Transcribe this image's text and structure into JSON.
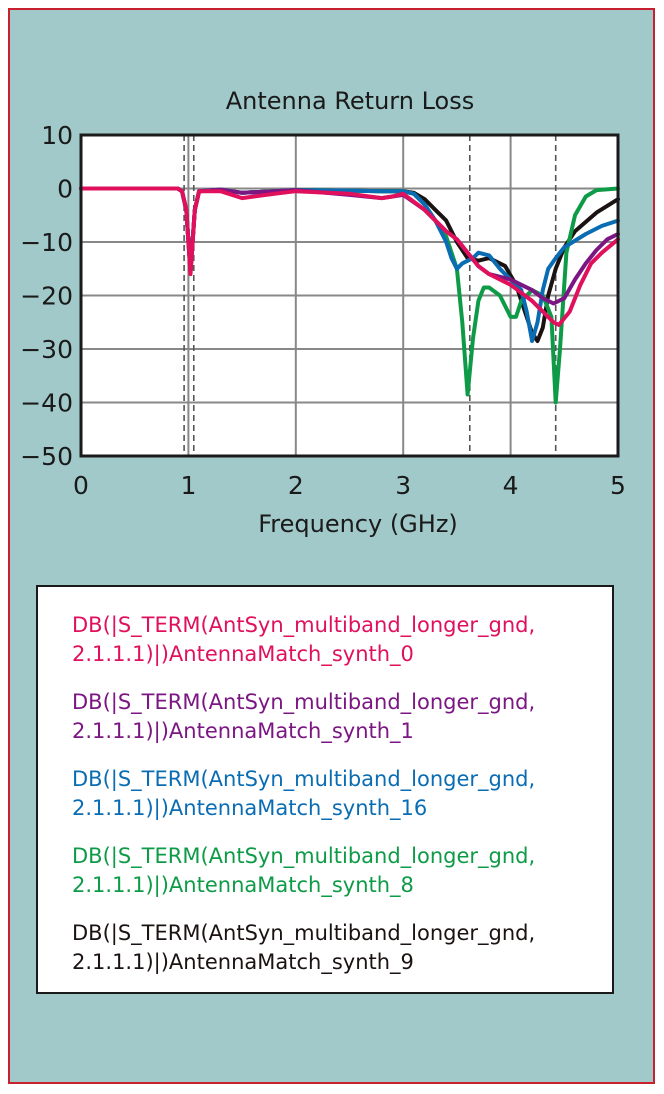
{
  "colors": {
    "background": "#a1c9c9",
    "frame_border": "#c8202f",
    "plot_bg": "#ffffff",
    "grid": "#888888",
    "axis": "#1a1a1a"
  },
  "chart_data": {
    "type": "line",
    "title": "Antenna Return Loss",
    "xlabel": "Frequency (GHz)",
    "ylabel": "",
    "xlim": [
      0,
      5
    ],
    "ylim": [
      -50,
      10
    ],
    "xticks": [
      "0",
      "1",
      "2",
      "3",
      "4",
      "5"
    ],
    "yticks": [
      "10",
      "0",
      "−10",
      "−20",
      "−30",
      "−40",
      "−50"
    ],
    "grid": true,
    "marker_lines": [
      0.96,
      1.05,
      3.62,
      4.42
    ],
    "legend_position": "below",
    "series": [
      {
        "name": "DB(|S_TERM(AntSyn_multiband_longer_gnd, 2.1.1.1)|)AntennaMatch_synth_9",
        "color": "#1b1212",
        "points": [
          [
            0,
            0
          ],
          [
            0.9,
            0
          ],
          [
            0.94,
            -0.5
          ],
          [
            0.98,
            -4
          ],
          [
            1.02,
            -15.5
          ],
          [
            1.06,
            -4
          ],
          [
            1.1,
            -0.5
          ],
          [
            1.3,
            -0.2
          ],
          [
            1.5,
            -0.8
          ],
          [
            1.8,
            -0.5
          ],
          [
            2.0,
            -0.3
          ],
          [
            2.5,
            -0.4
          ],
          [
            2.8,
            -0.5
          ],
          [
            3.0,
            -0.5
          ],
          [
            3.1,
            -0.8
          ],
          [
            3.2,
            -2
          ],
          [
            3.3,
            -4
          ],
          [
            3.4,
            -6
          ],
          [
            3.5,
            -10
          ],
          [
            3.6,
            -13
          ],
          [
            3.7,
            -13.5
          ],
          [
            3.8,
            -13
          ],
          [
            3.95,
            -14.5
          ],
          [
            4.05,
            -18
          ],
          [
            4.15,
            -24
          ],
          [
            4.2,
            -27
          ],
          [
            4.25,
            -28.5
          ],
          [
            4.3,
            -26
          ],
          [
            4.35,
            -20
          ],
          [
            4.42,
            -15
          ],
          [
            4.5,
            -11
          ],
          [
            4.6,
            -8
          ],
          [
            4.8,
            -4.5
          ],
          [
            5.0,
            -2
          ]
        ]
      },
      {
        "name": "DB(|S_TERM(AntSyn_multiband_longer_gnd, 2.1.1.1)|)AntennaMatch_synth_8",
        "color": "#0e9b47",
        "points": [
          [
            0,
            0
          ],
          [
            0.9,
            0
          ],
          [
            0.94,
            -0.5
          ],
          [
            0.98,
            -4
          ],
          [
            1.02,
            -15.5
          ],
          [
            1.06,
            -4
          ],
          [
            1.1,
            -0.5
          ],
          [
            1.3,
            -0.2
          ],
          [
            1.5,
            -0.8
          ],
          [
            1.8,
            -0.5
          ],
          [
            2.0,
            -0.3
          ],
          [
            2.5,
            -0.4
          ],
          [
            2.8,
            -0.5
          ],
          [
            3.0,
            -0.5
          ],
          [
            3.1,
            -1
          ],
          [
            3.2,
            -3
          ],
          [
            3.3,
            -6
          ],
          [
            3.4,
            -9
          ],
          [
            3.5,
            -15
          ],
          [
            3.55,
            -25
          ],
          [
            3.6,
            -38.5
          ],
          [
            3.65,
            -28
          ],
          [
            3.7,
            -21
          ],
          [
            3.75,
            -18.5
          ],
          [
            3.8,
            -18.5
          ],
          [
            3.9,
            -20
          ],
          [
            4.0,
            -24
          ],
          [
            4.05,
            -24
          ],
          [
            4.1,
            -21
          ],
          [
            4.2,
            -19
          ],
          [
            4.3,
            -20
          ],
          [
            4.38,
            -24
          ],
          [
            4.42,
            -40
          ],
          [
            4.46,
            -30
          ],
          [
            4.52,
            -12
          ],
          [
            4.6,
            -5
          ],
          [
            4.7,
            -1.5
          ],
          [
            4.8,
            -0.3
          ],
          [
            5.0,
            0
          ]
        ]
      },
      {
        "name": "DB(|S_TERM(AntSyn_multiband_longer_gnd, 2.1.1.1)|)AntennaMatch_synth_16",
        "color": "#0a6db3",
        "points": [
          [
            0,
            0
          ],
          [
            0.9,
            0
          ],
          [
            0.94,
            -0.5
          ],
          [
            0.98,
            -4
          ],
          [
            1.02,
            -15.5
          ],
          [
            1.06,
            -4
          ],
          [
            1.1,
            -0.5
          ],
          [
            1.3,
            -0.2
          ],
          [
            1.5,
            -0.8
          ],
          [
            1.8,
            -0.5
          ],
          [
            2.0,
            -0.3
          ],
          [
            2.5,
            -0.4
          ],
          [
            2.8,
            -0.5
          ],
          [
            3.0,
            -0.5
          ],
          [
            3.1,
            -1
          ],
          [
            3.2,
            -3
          ],
          [
            3.3,
            -6
          ],
          [
            3.4,
            -10
          ],
          [
            3.45,
            -13
          ],
          [
            3.5,
            -15
          ],
          [
            3.55,
            -14
          ],
          [
            3.65,
            -13
          ],
          [
            3.7,
            -12
          ],
          [
            3.8,
            -12.5
          ],
          [
            3.9,
            -15
          ],
          [
            4.0,
            -17
          ],
          [
            4.1,
            -19
          ],
          [
            4.15,
            -23
          ],
          [
            4.2,
            -28.5
          ],
          [
            4.25,
            -25
          ],
          [
            4.3,
            -19
          ],
          [
            4.35,
            -15
          ],
          [
            4.42,
            -13
          ],
          [
            4.5,
            -11
          ],
          [
            4.7,
            -8.5
          ],
          [
            4.85,
            -7
          ],
          [
            5.0,
            -6
          ]
        ]
      },
      {
        "name": "DB(|S_TERM(AntSyn_multiband_longer_gnd, 2.1.1.1)|)AntennaMatch_synth_1",
        "color": "#7b1683",
        "points": [
          [
            0,
            0
          ],
          [
            0.9,
            0
          ],
          [
            0.94,
            -0.5
          ],
          [
            0.98,
            -4
          ],
          [
            1.02,
            -15.5
          ],
          [
            1.06,
            -4
          ],
          [
            1.1,
            -0.5
          ],
          [
            1.3,
            -0.2
          ],
          [
            1.5,
            -0.8
          ],
          [
            1.8,
            -0.5
          ],
          [
            2.0,
            -0.3
          ],
          [
            2.5,
            -1.2
          ],
          [
            2.8,
            -1.8
          ],
          [
            2.9,
            -1.5
          ],
          [
            3.0,
            -1.2
          ],
          [
            3.2,
            -4
          ],
          [
            3.4,
            -8
          ],
          [
            3.5,
            -9.5
          ],
          [
            3.6,
            -12
          ],
          [
            3.7,
            -14.5
          ],
          [
            3.8,
            -16
          ],
          [
            4.0,
            -17
          ],
          [
            4.1,
            -18
          ],
          [
            4.2,
            -19
          ],
          [
            4.3,
            -20.5
          ],
          [
            4.4,
            -21.5
          ],
          [
            4.5,
            -20.5
          ],
          [
            4.6,
            -17
          ],
          [
            4.7,
            -14
          ],
          [
            4.8,
            -11.5
          ],
          [
            4.9,
            -9.5
          ],
          [
            5.0,
            -8.5
          ]
        ]
      },
      {
        "name": "DB(|S_TERM(AntSyn_multiband_longer_gnd, 2.1.1.1)|)AntennaMatch_synth_0",
        "color": "#e0105d",
        "points": [
          [
            0,
            0
          ],
          [
            0.9,
            0
          ],
          [
            0.94,
            -0.5
          ],
          [
            0.98,
            -4
          ],
          [
            1.02,
            -16
          ],
          [
            1.06,
            -4
          ],
          [
            1.1,
            -0.5
          ],
          [
            1.3,
            -0.5
          ],
          [
            1.5,
            -1.8
          ],
          [
            1.8,
            -1
          ],
          [
            2.0,
            -0.5
          ],
          [
            2.5,
            -1
          ],
          [
            2.8,
            -1.8
          ],
          [
            2.9,
            -1.5
          ],
          [
            3.0,
            -1
          ],
          [
            3.2,
            -4
          ],
          [
            3.4,
            -8
          ],
          [
            3.5,
            -9.5
          ],
          [
            3.6,
            -12
          ],
          [
            3.7,
            -14.5
          ],
          [
            3.8,
            -16
          ],
          [
            4.0,
            -18
          ],
          [
            4.2,
            -21
          ],
          [
            4.3,
            -23
          ],
          [
            4.4,
            -25
          ],
          [
            4.45,
            -25.5
          ],
          [
            4.55,
            -23
          ],
          [
            4.65,
            -18
          ],
          [
            4.75,
            -14
          ],
          [
            4.85,
            -12
          ],
          [
            5.0,
            -9.5
          ]
        ]
      }
    ]
  },
  "legend": {
    "entries": [
      {
        "text": "DB(|S_TERM(AntSyn_multiband_longer_gnd,\n2.1.1.1)|)AntennaMatch_synth_0",
        "color": "#e0105d"
      },
      {
        "text": "DB(|S_TERM(AntSyn_multiband_longer_gnd,\n2.1.1.1)|)AntennaMatch_synth_1",
        "color": "#7b1683"
      },
      {
        "text": "DB(|S_TERM(AntSyn_multiband_longer_gnd,\n2.1.1.1)|)AntennaMatch_synth_16",
        "color": "#0a6db3"
      },
      {
        "text": "DB(|S_TERM(AntSyn_multiband_longer_gnd,\n2.1.1.1)|)AntennaMatch_synth_8",
        "color": "#0e9b47"
      },
      {
        "text": "DB(|S_TERM(AntSyn_multiband_longer_gnd,\n2.1.1.1)|)AntennaMatch_synth_9",
        "color": "#1b1212"
      }
    ]
  }
}
